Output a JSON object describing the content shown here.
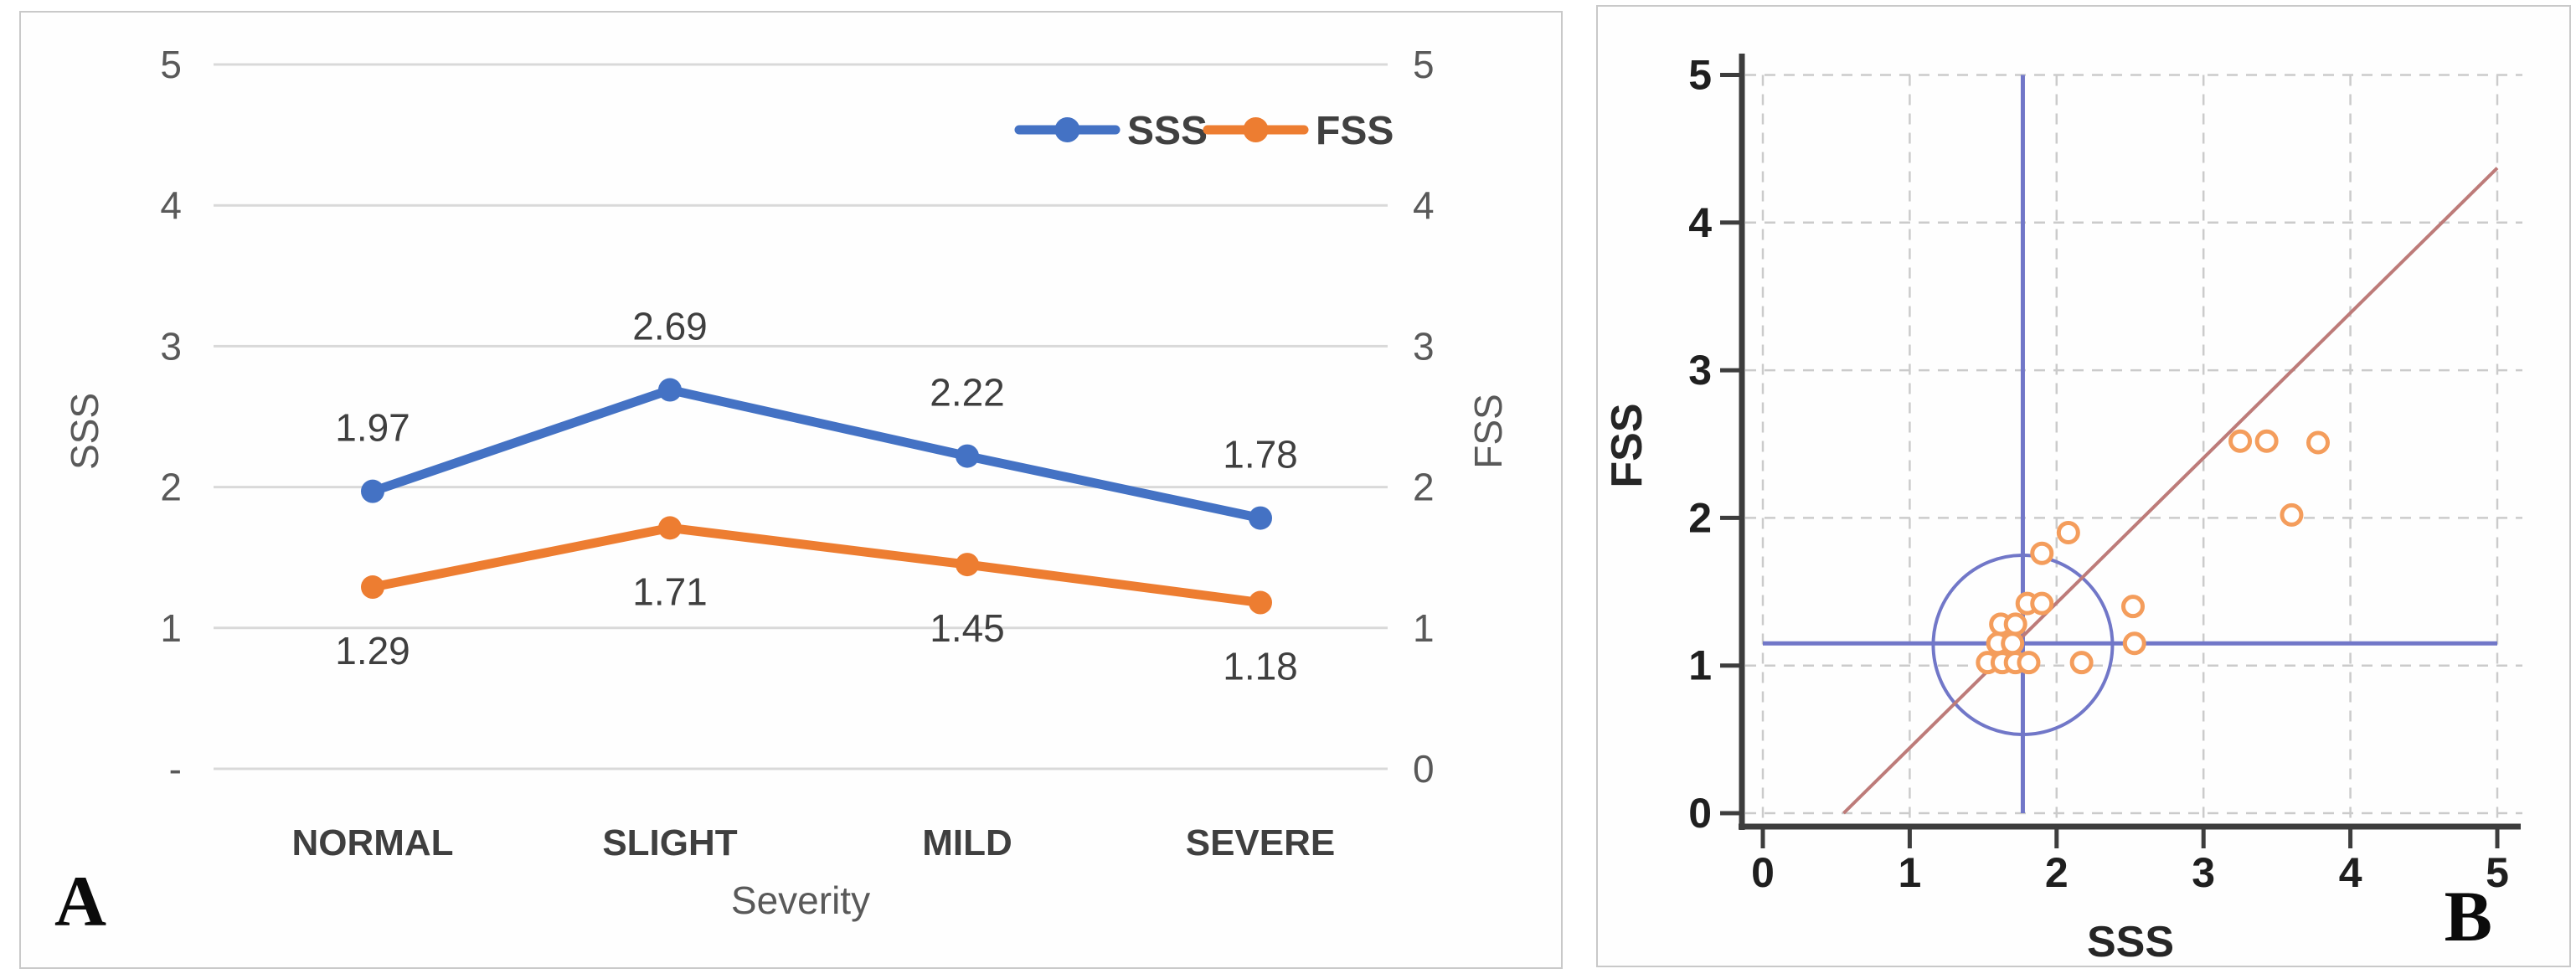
{
  "panel_a": {
    "label": "A"
  },
  "panel_b": {
    "label": "B"
  },
  "colors": {
    "series_blue": "#4472C4",
    "series_orange": "#ED7D31",
    "grid_light": "#d9d9d9",
    "axis_text": "#595959",
    "data_label_text": "#3f3f3f",
    "scatter_marker": "#F49D5C",
    "reference_blue": "#7177C8",
    "regression_red": "#BD7B79",
    "scatter_axis": "#3d3d3d",
    "scatter_tick_text": "#1f1f1f"
  },
  "chart_data": [
    {
      "type": "line",
      "panel": "A",
      "title": "",
      "categories": [
        "NORMAL",
        "SLIGHT",
        "MILD",
        "SEVERE"
      ],
      "xlabel": "Severity",
      "left_axis": {
        "title": "SSS",
        "ticks": [
          "5",
          "4",
          "3",
          "2",
          "1",
          "-"
        ],
        "range": [
          0,
          5
        ]
      },
      "right_axis": {
        "title": "FSS",
        "ticks": [
          "5",
          "4",
          "3",
          "2",
          "1",
          "0"
        ],
        "range": [
          0,
          5
        ]
      },
      "grid": true,
      "legend_position": "top-right",
      "series": [
        {
          "name": "SSS",
          "color": "#4472C4",
          "values": [
            1.97,
            2.69,
            2.22,
            1.78
          ],
          "data_labels": [
            "1.97",
            "2.69",
            "2.22",
            "1.78"
          ],
          "label_side": "above"
        },
        {
          "name": "FSS",
          "color": "#ED7D31",
          "values": [
            1.29,
            1.71,
            1.45,
            1.18
          ],
          "data_labels": [
            "1.29",
            "1.71",
            "1.45",
            "1.18"
          ],
          "label_side": "below"
        }
      ]
    },
    {
      "type": "scatter",
      "panel": "B",
      "xlabel": "SSS",
      "ylabel": "FSS",
      "xlim": [
        0,
        5
      ],
      "ylim": [
        0,
        5
      ],
      "x_ticks": [
        "0",
        "1",
        "2",
        "3",
        "4",
        "5"
      ],
      "y_ticks": [
        "0",
        "1",
        "2",
        "3",
        "4",
        "5"
      ],
      "grid": "dashed",
      "marker": {
        "shape": "open-circle",
        "color": "#F49D5C"
      },
      "points": [
        [
          1.62,
          1.28
        ],
        [
          1.72,
          1.28
        ],
        [
          1.6,
          1.15
        ],
        [
          1.7,
          1.15
        ],
        [
          1.53,
          1.02
        ],
        [
          1.63,
          1.02
        ],
        [
          1.72,
          1.02
        ],
        [
          1.81,
          1.02
        ],
        [
          1.8,
          1.42
        ],
        [
          1.9,
          1.42
        ],
        [
          1.9,
          1.76
        ],
        [
          2.08,
          1.9
        ],
        [
          2.17,
          1.02
        ],
        [
          2.52,
          1.4
        ],
        [
          2.53,
          1.15
        ],
        [
          3.25,
          2.52
        ],
        [
          3.43,
          2.52
        ],
        [
          3.78,
          2.51
        ],
        [
          3.6,
          2.02
        ]
      ],
      "reference_lines": {
        "vertical_x": 1.77,
        "horizontal_y": 1.15,
        "color": "#7177C8"
      },
      "cluster_circle": {
        "cx": 1.77,
        "cy": 1.14,
        "r": 0.61,
        "color": "#7177C8"
      },
      "regression_line": {
        "from": [
          0.55,
          0
        ],
        "to": [
          5,
          4.37
        ],
        "color": "#BD7B79"
      }
    }
  ]
}
